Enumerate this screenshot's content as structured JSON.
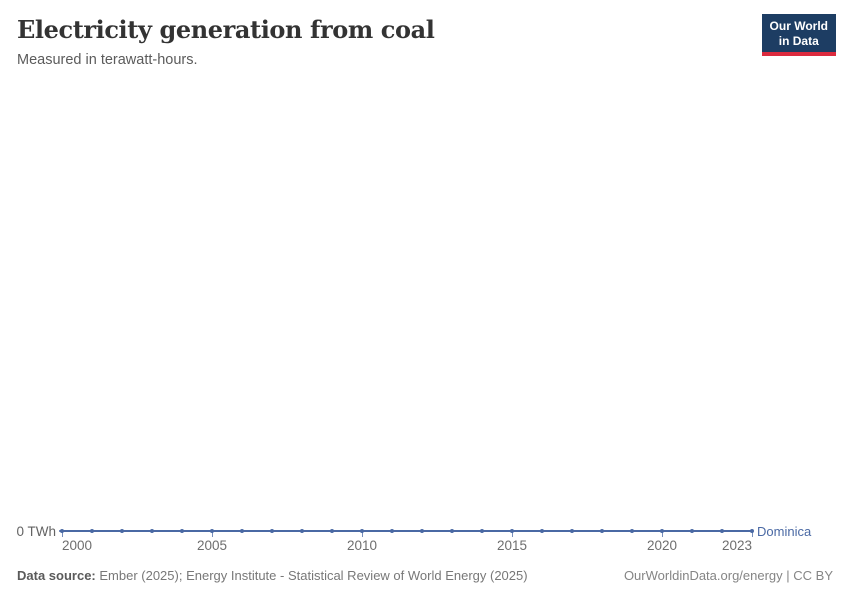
{
  "header": {
    "title": "Electricity generation from coal",
    "subtitle": "Measured in terawatt-hours.",
    "logo": {
      "line1": "Our World",
      "line2": "in Data"
    }
  },
  "axis": {
    "y_zero_label": "0 TWh",
    "x_tick_years": [
      2000,
      2005,
      2010,
      2015,
      2020,
      2023
    ]
  },
  "entity_label": "Dominica",
  "footer": {
    "source_label": "Data source:",
    "source_text": " Ember (2025); Energy Institute - Statistical Review of World Energy (2025)",
    "right_text": "OurWorldinData.org/energy | CC BY"
  },
  "colors": {
    "series": "#4a69a4",
    "logo_bg": "#1d3d63",
    "logo_red": "#dc2a3e"
  },
  "chart_data": {
    "type": "line",
    "title": "Electricity generation from coal",
    "subtitle": "Measured in terawatt-hours.",
    "xlabel": "",
    "ylabel": "terawatt-hours",
    "ylim": [
      0,
      0
    ],
    "grid": false,
    "legend_position": "end-of-line",
    "x": [
      2000,
      2001,
      2002,
      2003,
      2004,
      2005,
      2006,
      2007,
      2008,
      2009,
      2010,
      2011,
      2012,
      2013,
      2014,
      2015,
      2016,
      2017,
      2018,
      2019,
      2020,
      2021,
      2022,
      2023
    ],
    "series": [
      {
        "name": "Dominica",
        "values": [
          0,
          0,
          0,
          0,
          0,
          0,
          0,
          0,
          0,
          0,
          0,
          0,
          0,
          0,
          0,
          0,
          0,
          0,
          0,
          0,
          0,
          0,
          0,
          0
        ]
      }
    ]
  }
}
